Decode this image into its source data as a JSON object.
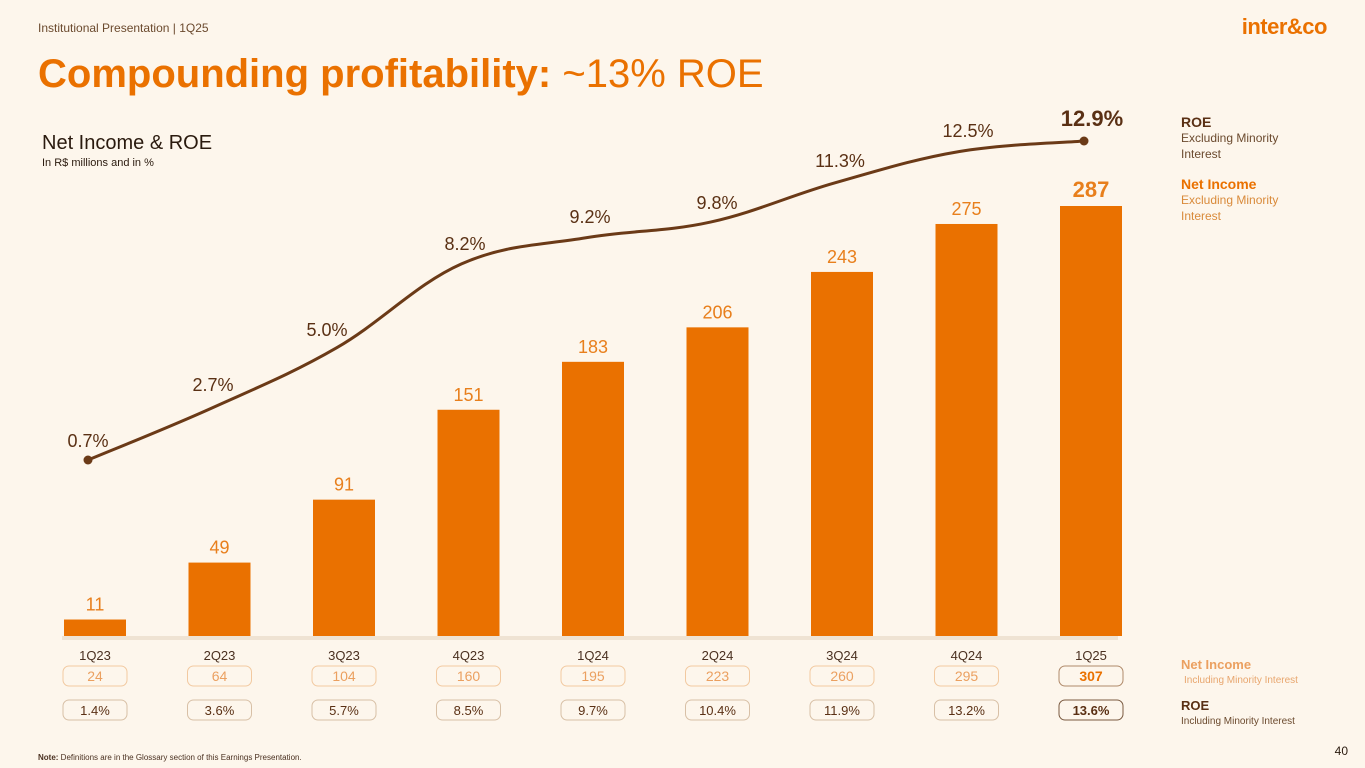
{
  "header": {
    "presentation": "Institutional Presentation | 1Q25",
    "logo": "inter&co"
  },
  "title": {
    "bold": "Compounding profitability:",
    "light": " ~13% ROE"
  },
  "chart_header": {
    "title": "Net Income & ROE",
    "subtitle": "In R$ millions and in %"
  },
  "legend": {
    "roe_ex": {
      "label": "ROE",
      "desc": "Excluding Minority Interest"
    },
    "ni_ex": {
      "label": "Net Income",
      "desc": "Excluding Minority Interest"
    },
    "ni_in": {
      "label": "Net Income",
      "desc": "Including Minority Interest"
    },
    "roe_in": {
      "label": "ROE",
      "desc": "Including Minority Interest"
    }
  },
  "note": {
    "label": "Note:",
    "text": " Definitions are in the Glossary section of this Earnings Presentation."
  },
  "page_number": "40",
  "colors": {
    "bar": "#ea7100",
    "line": "#6b3a17",
    "bar_label": "#e87f1c",
    "box_stroke": "#f2c9a0",
    "box_fill": "#fdf6ec",
    "axis": "#efe3d3"
  },
  "chart_data": {
    "type": "bar",
    "categories": [
      "1Q23",
      "2Q23",
      "3Q23",
      "4Q23",
      "1Q24",
      "2Q24",
      "3Q24",
      "4Q24",
      "1Q25"
    ],
    "series": [
      {
        "name": "Net Income Excluding Minority Interest",
        "type": "bar",
        "values": [
          11,
          49,
          91,
          151,
          183,
          206,
          243,
          275,
          287
        ],
        "labels": [
          "11",
          "49",
          "91",
          "151",
          "183",
          "206",
          "243",
          "275",
          "287"
        ]
      },
      {
        "name": "ROE Excluding Minority Interest",
        "type": "line",
        "values": [
          0.7,
          2.7,
          5.0,
          8.2,
          9.2,
          9.8,
          11.3,
          12.5,
          12.9
        ],
        "labels": [
          "0.7%",
          "2.7%",
          "5.0%",
          "8.2%",
          "9.2%",
          "9.8%",
          "11.3%",
          "12.5%",
          "12.9%"
        ]
      },
      {
        "name": "Net Income Including Minority Interest",
        "type": "table",
        "values": [
          24,
          64,
          104,
          160,
          195,
          223,
          260,
          295,
          307
        ],
        "labels": [
          "24",
          "64",
          "104",
          "160",
          "195",
          "223",
          "260",
          "295",
          "307"
        ]
      },
      {
        "name": "ROE Including Minority Interest",
        "type": "table",
        "values": [
          1.4,
          3.6,
          5.7,
          8.5,
          9.7,
          10.4,
          11.9,
          13.2,
          13.6
        ],
        "labels": [
          "1.4%",
          "3.6%",
          "5.7%",
          "8.5%",
          "9.7%",
          "10.4%",
          "11.9%",
          "13.2%",
          "13.6%"
        ]
      }
    ],
    "highlight_last": true,
    "ylim_bar": [
      0,
      287
    ],
    "ylim_line": [
      0.7,
      12.9
    ]
  }
}
